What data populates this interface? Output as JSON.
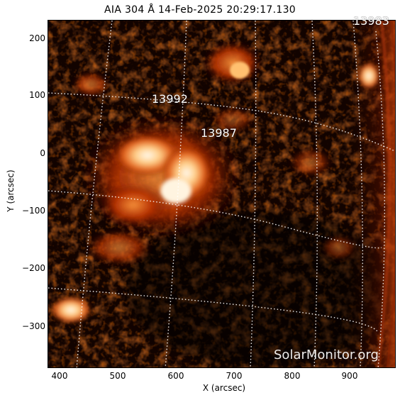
{
  "title": "AIA 304 Å 14-Feb-2025 20:29:17.130",
  "y_axis": {
    "label": "Y (arcsec)",
    "ticks": [
      "200",
      "100",
      "0",
      "−100",
      "−200",
      "−300"
    ]
  },
  "x_axis": {
    "label": "X (arcsec)",
    "ticks": [
      "400",
      "500",
      "600",
      "700",
      "800",
      "900"
    ]
  },
  "regions": [
    "13992",
    "13987",
    "13983"
  ],
  "watermark": "SolarMonitor.org",
  "colors": {
    "background": "#120300",
    "emission_mid": "#b32d00",
    "emission_bright": "#ffb060",
    "emission_peak": "#fff6e8",
    "grid": "#ffffff"
  }
}
